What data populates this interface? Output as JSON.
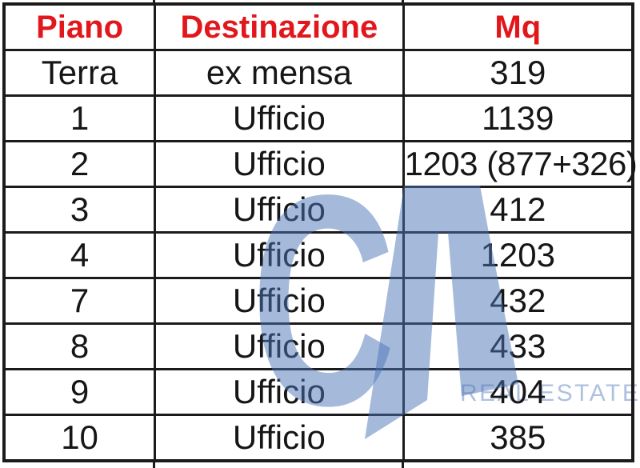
{
  "chart_data": {
    "type": "table",
    "columns": [
      "Piano",
      "Destinazione",
      "Mq"
    ],
    "rows": [
      [
        "Terra",
        "ex mensa",
        "319"
      ],
      [
        "1",
        "Ufficio",
        "1139"
      ],
      [
        "2",
        "Ufficio",
        "1203 (877+326)"
      ],
      [
        "3",
        "Ufficio",
        "412"
      ],
      [
        "4",
        "Ufficio",
        "1203"
      ],
      [
        "7",
        "Ufficio",
        "432"
      ],
      [
        "8",
        "Ufficio",
        "433"
      ],
      [
        "9",
        "Ufficio",
        "404"
      ],
      [
        "10",
        "Ufficio",
        "385"
      ]
    ],
    "title": "",
    "layout_hints": "bordered grid table, red bold header row, black body text, large blue CA REAL ESTATE watermark overlay"
  },
  "watermark": {
    "letters": "CA",
    "letter_c": "C",
    "subtext": "REAL ESTATE"
  },
  "colors": {
    "header_red": "#e2171c",
    "watermark_blue": "#4c73b8",
    "border_black": "#1b1b1b",
    "text_black": "#161616",
    "background": "#ffffff"
  }
}
